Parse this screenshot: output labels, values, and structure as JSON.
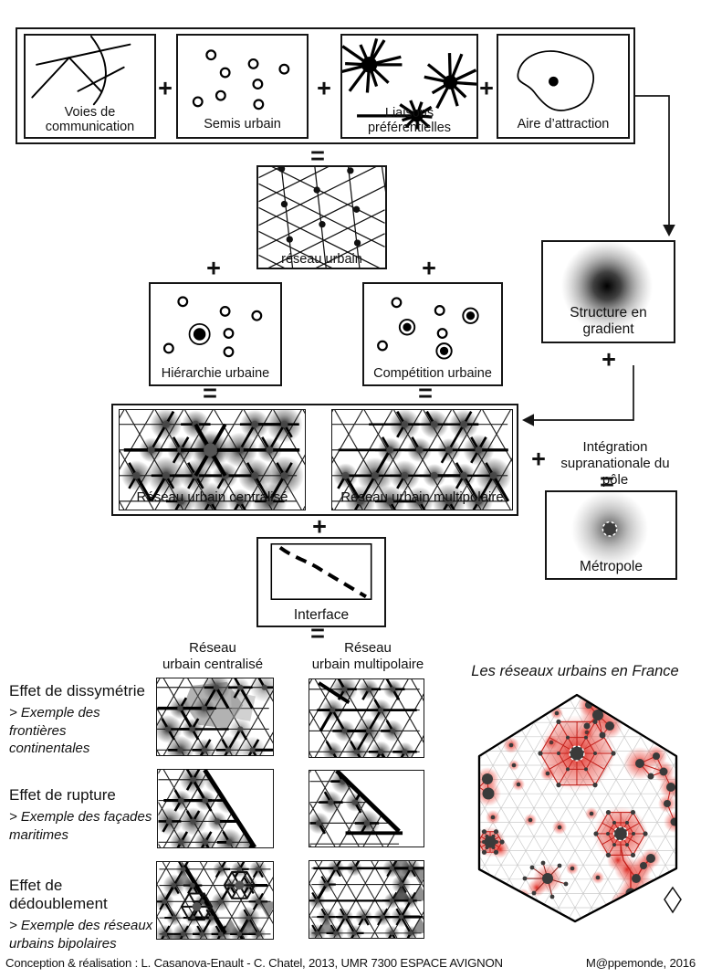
{
  "operators": {
    "plus": "+",
    "equals": "="
  },
  "top_row": {
    "voies_line1": "Voies de",
    "voies_line2": "communication",
    "semis": "Semis urbain",
    "liaisons": "Liaisons préférentielles",
    "aire": "Aire d’attraction"
  },
  "middle": {
    "reseau_urbain": "réseau urbain",
    "hierarchie": "Hiérarchie urbaine",
    "competition": "Compétition urbaine",
    "gradient": "Structure en gradient",
    "centralise": "Réseau urbain centralisé",
    "multipolaire": "Réseau urbain multipolaire",
    "integration_line1": "Intégration",
    "integration_line2": "supranationale du pôle",
    "metropole": "Métropole",
    "interface": "Interface"
  },
  "effects": {
    "col1_line1": "Réseau",
    "col1_line2": "urbain centralisé",
    "col2_line1": "Réseau",
    "col2_line2": "urbain multipolaire",
    "rows": [
      {
        "title": "Effet de dissymétrie",
        "sub1": "> Exemple des frontières",
        "sub2": "continentales"
      },
      {
        "title": "Effet de rupture",
        "sub1": "> Exemple des façades",
        "sub2": "maritimes"
      },
      {
        "title": "Effet de dédoublement",
        "sub1": "> Exemple des réseaux",
        "sub2": "urbains bipolaires"
      }
    ]
  },
  "map": {
    "title": "Les réseaux urbains en France"
  },
  "footer": {
    "credit": "Conception & réalisation : L. Casanova-Enault - C. Chatel, 2013, UMR 7300 ESPACE AVIGNON",
    "journal": "M@ppemonde, 2016"
  },
  "colors": {
    "ink": "#111111",
    "map_red": "#e63228"
  }
}
